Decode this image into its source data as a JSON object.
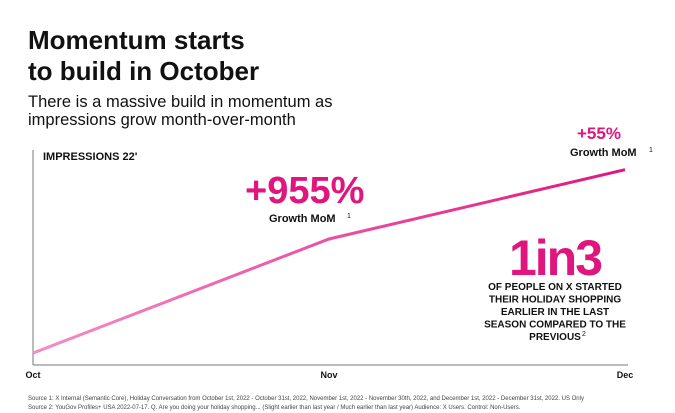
{
  "chart_data": {
    "type": "line",
    "title": [
      "Momentum starts",
      "to build in October"
    ],
    "subtitle": [
      "There is a massive build in momentum as",
      "impressions grow month-over-month"
    ],
    "y_label": "IMPRESSIONS 22'",
    "categories": [
      "Oct",
      "Nov",
      "Dec"
    ],
    "values": [
      1,
      10.55,
      16.35
    ],
    "ylim": [
      0,
      18
    ],
    "color": "#e0157e",
    "annotations": [
      {
        "value": "+955%",
        "text": "Growth MoM",
        "note": "1"
      },
      {
        "value": "+55%",
        "text": "Growth MoM",
        "note": "1"
      }
    ],
    "stat": {
      "value": "1in3",
      "lines": [
        "OF PEOPLE ON X STARTED",
        "THEIR HOLIDAY SHOPPING",
        "EARLIER IN  THE LAST",
        "SEASON COMPARED TO THE",
        "PREVIOUS"
      ],
      "note": "2"
    },
    "sources": [
      "Source 1: X Internal (Semantic Core), Holiday Conversation from October 1st, 2022 - October 31st, 2022, November 1st, 2022 - November 30th, 2022, and December 1st, 2022 - December 31st, 2022. US Only",
      "Source 2: YouGov Profiles+ USA 2022-07-17. Q. Are you doing your holiday shopping... (Slight earlier than last year / Much earlier than last year)  Audience: X Users. Control: Non-Users."
    ]
  }
}
